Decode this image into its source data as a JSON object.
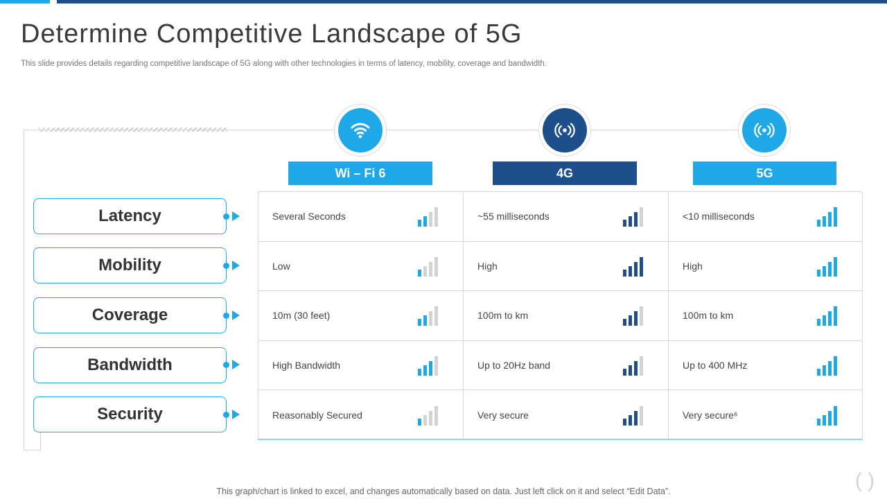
{
  "title": "Determine Competitive Landscape of 5G",
  "subtitle": "This slide provides details regarding competitive landscape of 5G along with other technologies in terms of latency, mobility, coverage and bandwidth.",
  "technologies": [
    {
      "label": "Wi – Fi 6",
      "icon": "wifi-icon",
      "color": "#1ea8e8"
    },
    {
      "label": "4G",
      "icon": "broadcast-icon",
      "color": "#1e4f8c"
    },
    {
      "label": "5G",
      "icon": "broadcast-icon",
      "color": "#1ea8e8"
    }
  ],
  "criteria": [
    "Latency",
    "Mobility",
    "Coverage",
    "Bandwidth",
    "Security"
  ],
  "rows": [
    {
      "cells": [
        {
          "text": "Several Seconds",
          "level": 2
        },
        {
          "text": "~55 milliseconds",
          "level": 3
        },
        {
          "text": "<10 milliseconds",
          "level": 4
        }
      ]
    },
    {
      "cells": [
        {
          "text": "Low",
          "level": 1
        },
        {
          "text": "High",
          "level": 4
        },
        {
          "text": "High",
          "level": 4
        }
      ]
    },
    {
      "cells": [
        {
          "text": "10m (30 feet)",
          "level": 2
        },
        {
          "text": "100m to km",
          "level": 3
        },
        {
          "text": "100m to km",
          "level": 4
        }
      ]
    },
    {
      "cells": [
        {
          "text": "High Bandwidth",
          "level": 3
        },
        {
          "text": "Up to 20Hz band",
          "level": 3
        },
        {
          "text": "Up to 400 MHz",
          "level": 4
        }
      ]
    },
    {
      "cells": [
        {
          "text": "Reasonably Secured",
          "level": 1
        },
        {
          "text": "Very secure",
          "level": 3
        },
        {
          "text": "Very secure⁶",
          "level": 4
        }
      ]
    }
  ],
  "signal_bar_max": 4,
  "colors": {
    "accent": "#1ea8e8",
    "dark": "#1e4f8c",
    "inactive": "#d3d3d3"
  },
  "footer": "This graph/chart is linked to excel, and changes automatically based on data. Just left click on it and select “Edit Data”."
}
